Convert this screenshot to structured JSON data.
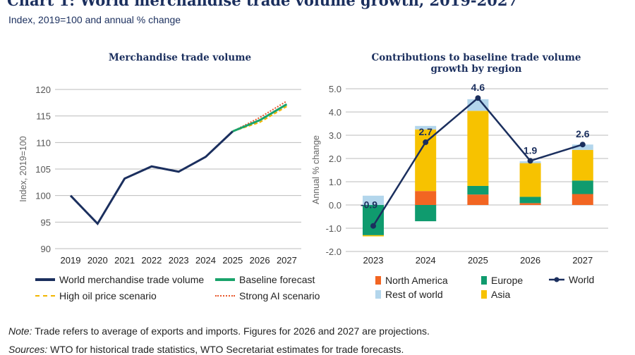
{
  "header": {
    "title": "Chart 1: World merchandise trade volume growth, 2019-2027",
    "subtitle": "Index, 2019=100 and annual % change"
  },
  "chart_data": [
    {
      "type": "line",
      "title": "Merchandise trade volume",
      "ylabel": "Index, 2019=100",
      "ylim": [
        90,
        120
      ],
      "yticks": [
        90,
        95,
        100,
        105,
        110,
        115,
        120
      ],
      "grid": true,
      "x": [
        "2019",
        "2020",
        "2021",
        "2022",
        "2023",
        "2024",
        "2025",
        "2026",
        "2027"
      ],
      "series": [
        {
          "name": "World merchandise trade volume",
          "color": "#1b2f5e",
          "style": "solid",
          "x": [
            "2019",
            "2020",
            "2021",
            "2022",
            "2023",
            "2024",
            "2025"
          ],
          "values": [
            100,
            94.7,
            103.2,
            105.5,
            104.5,
            107.3,
            112.1
          ]
        },
        {
          "name": "Baseline forecast",
          "color": "#1aa36b",
          "style": "solid",
          "x": [
            "2025",
            "2026",
            "2027"
          ],
          "values": [
            112.1,
            114.2,
            117.2
          ]
        },
        {
          "name": "High oil price scenario",
          "color": "#f2b600",
          "style": "dashed",
          "x": [
            "2025",
            "2026",
            "2027"
          ],
          "values": [
            112.1,
            113.8,
            116.8
          ]
        },
        {
          "name": "Strong AI scenario",
          "color": "#e8562a",
          "style": "dotted",
          "x": [
            "2025",
            "2026",
            "2027"
          ],
          "values": [
            112.1,
            114.7,
            117.8
          ]
        }
      ]
    },
    {
      "type": "bar",
      "stacked": true,
      "title": "Contributions to baseline trade volume growth by region",
      "ylabel": "Annual % change",
      "ylim": [
        -2,
        5
      ],
      "yticks": [
        "-2.0",
        "-1.0",
        "0.0",
        "1.0",
        "2.0",
        "3.0",
        "4.0",
        "5.0"
      ],
      "grid": true,
      "categories": [
        "2023",
        "2024",
        "2025",
        "2026",
        "2027"
      ],
      "series": [
        {
          "name": "North America",
          "color": "#f26522",
          "values": [
            0,
            0.6,
            0.45,
            0.08,
            0.47
          ]
        },
        {
          "name": "Europe",
          "color": "#0f9b6e",
          "values": [
            -1.3,
            -0.7,
            0.37,
            0.27,
            0.58
          ]
        },
        {
          "name": "Asia",
          "color": "#f7c200",
          "values": [
            -0.05,
            2.65,
            3.23,
            1.45,
            1.32
          ]
        },
        {
          "name": "Rest of world",
          "color": "#b3d6ec",
          "values": [
            0.4,
            0.15,
            0.5,
            0.08,
            0.23
          ]
        }
      ],
      "line": {
        "name": "World",
        "color": "#1b2f5e",
        "values": [
          -0.9,
          2.7,
          4.6,
          1.9,
          2.6
        ],
        "labels": [
          "-0.9",
          "2.7",
          "4.6",
          "1.9",
          "2.6"
        ]
      }
    }
  ],
  "footer": {
    "note_label": "Note:",
    "note": " Trade refers to average of exports and imports. Figures for 2026 and 2027 are projections.",
    "sources_label": "Sources:",
    "sources": " WTO for historical trade statistics, WTO Secretariat estimates for trade forecasts."
  }
}
